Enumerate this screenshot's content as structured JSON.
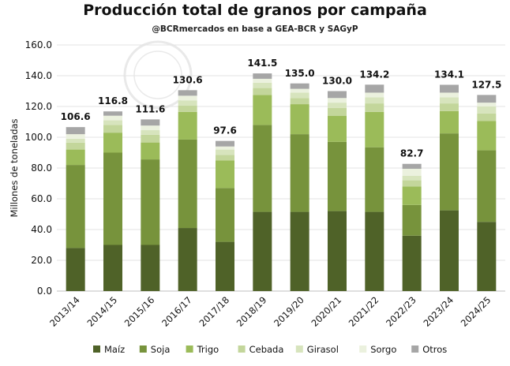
{
  "chart_data": {
    "type": "bar",
    "stacked": true,
    "title": "Producción total de granos por campaña",
    "subtitle": "@BCRmercados  en base a GEA-BCR y SAGyP",
    "xlabel": "",
    "ylabel": "Millones de toneladas",
    "ylim": [
      0,
      160
    ],
    "yticks": [
      "0.0",
      "20.0",
      "40.0",
      "60.0",
      "80.0",
      "100.0",
      "120.0",
      "140.0",
      "160.0"
    ],
    "grid": true,
    "legend_position": "bottom",
    "categories": [
      "2013/14",
      "2014/15",
      "2015/16",
      "2016/17",
      "2017/18",
      "2018/19",
      "2019/20",
      "2020/21",
      "2021/22",
      "2022/23",
      "2023/24",
      "2024/25"
    ],
    "totals": [
      "106.6",
      "116.8",
      "111.6",
      "130.6",
      "97.6",
      "141.5",
      "135.0",
      "130.0",
      "134.2",
      "82.7",
      "134.1",
      "127.5"
    ],
    "series": [
      {
        "name": "Maíz",
        "color": "#4f6228",
        "values": [
          28,
          30,
          30,
          41,
          32,
          51.5,
          51.5,
          52,
          51.5,
          36,
          52.5,
          45
        ]
      },
      {
        "name": "Soja",
        "color": "#77933c",
        "values": [
          54,
          60,
          55.6,
          57.5,
          35,
          56.5,
          50.5,
          45,
          42,
          20,
          50,
          46.5
        ]
      },
      {
        "name": "Trigo",
        "color": "#9bbb59",
        "values": [
          10,
          13,
          11,
          18,
          18,
          19.5,
          19.5,
          17,
          23,
          12,
          14.5,
          19
        ]
      },
      {
        "name": "Cebada",
        "color": "#c3d69b",
        "values": [
          4.5,
          5,
          5,
          4,
          3.5,
          4.5,
          4,
          5,
          5.5,
          4,
          5,
          5
        ]
      },
      {
        "name": "Girasol",
        "color": "#d7e4bd",
        "values": [
          2.5,
          3,
          3,
          3.5,
          3.5,
          3.5,
          3.5,
          3.5,
          4,
          3,
          4,
          4.5
        ]
      },
      {
        "name": "Sorgo",
        "color": "#ebf1de",
        "values": [
          3,
          3,
          3,
          3,
          2,
          2.5,
          2.5,
          3,
          3,
          4.5,
          3,
          2.5
        ]
      },
      {
        "name": "Otros",
        "color": "#a6a6a6",
        "values": [
          4.6,
          2.8,
          4,
          3.6,
          3.6,
          3.5,
          3.5,
          4.5,
          5.2,
          3.2,
          5.1,
          5
        ]
      }
    ]
  }
}
